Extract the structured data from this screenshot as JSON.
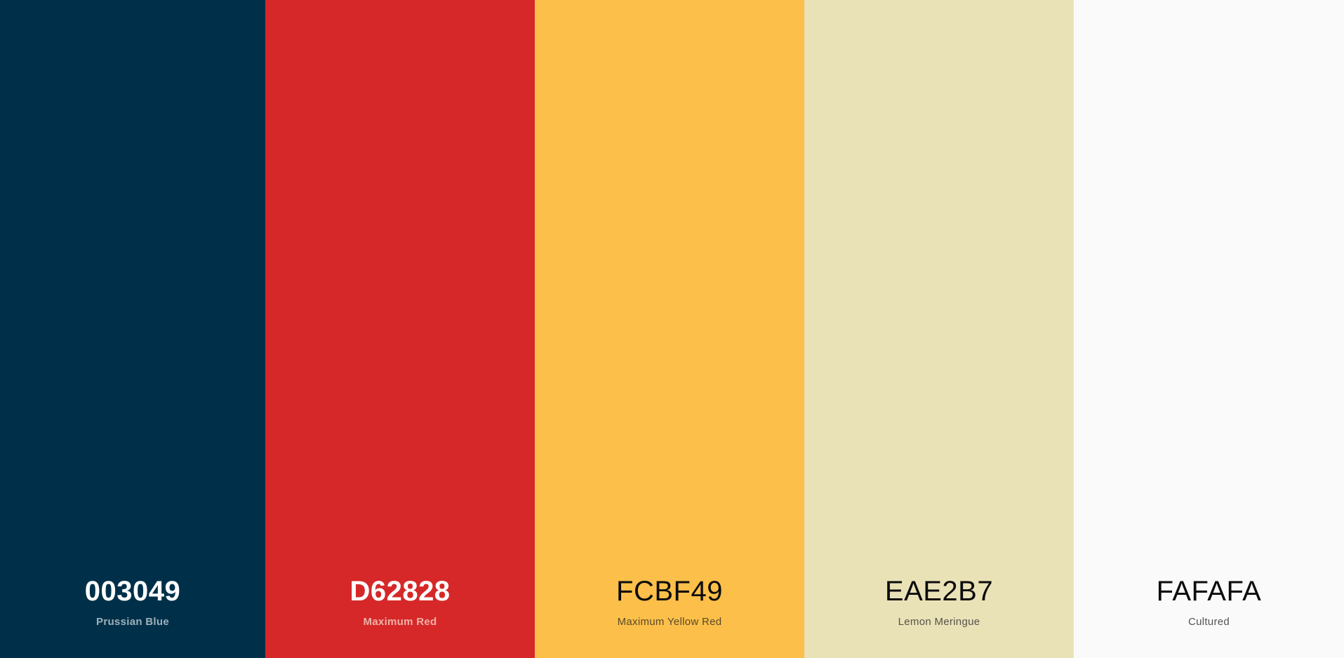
{
  "palette": {
    "colors": [
      {
        "hex": "003049",
        "name": "Prussian Blue",
        "background": "#003049",
        "text_color": "#ffffff",
        "name_color": "#9fb0bb",
        "tone": "dark"
      },
      {
        "hex": "D62828",
        "name": "Maximum Red",
        "background": "#D62828",
        "text_color": "#ffffff",
        "name_color": "#f0b1a9",
        "tone": "dark"
      },
      {
        "hex": "FCBF49",
        "name": "Maximum Yellow Red",
        "background": "#FCBF49",
        "text_color": "#0c0c0c",
        "name_color": "#5a4a2a",
        "tone": "light"
      },
      {
        "hex": "EAE2B7",
        "name": "Lemon Meringue",
        "background": "#EAE2B7",
        "text_color": "#0c0c0c",
        "name_color": "#55524a",
        "tone": "light"
      },
      {
        "hex": "FAFAFA",
        "name": "Cultured",
        "background": "#FAFAFA",
        "text_color": "#0c0c0c",
        "name_color": "#555555",
        "tone": "light"
      }
    ]
  }
}
